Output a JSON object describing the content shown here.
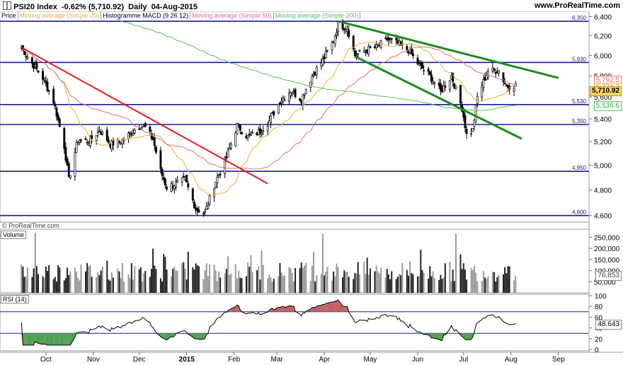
{
  "header": {
    "icon": "chart-candles-icon",
    "instrument": "PSI20 Index",
    "change": "-0.62% (5,710.92)",
    "period": "Daily",
    "date": "04-Aug-2015",
    "site": "www.ProRealTime.com",
    "watermark": "© ProRealTime.com"
  },
  "legend": [
    {
      "label": "Price",
      "color": "#000000"
    },
    {
      "label": "Moving average (Simple 20)",
      "color": "#e8b02c"
    },
    {
      "label": "Histogramme MACD (9 26 12)",
      "color": "#000000"
    },
    {
      "label": "Moving average (Simple 50)",
      "color": "#e07070"
    },
    {
      "label": "Moving average (Simple 200)",
      "color": "#52c452"
    }
  ],
  "colors": {
    "candle_up": "#ffffff",
    "candle_down": "#000000",
    "sma20": "#e8b02c",
    "sma50": "#e07070",
    "sma200": "#52c452",
    "support_lines": "#1a1a99",
    "downtrend_line": "#e02020",
    "channel_lines": "#1e8a1e",
    "rsi_line": "#000000",
    "rsi_overbought_fill": "#c06060",
    "rsi_oversold_fill": "#4fa04f"
  },
  "chart_data": [
    {
      "type": "candlestick",
      "title": "PSI20 Index Daily",
      "y_scale": "log",
      "ylim": [
        4550,
        6380
      ],
      "y_ticks": [
        "6,400",
        "6,200",
        "6,000",
        "5,800",
        "5,600",
        "5,400",
        "5,200",
        "5,000",
        "4,800",
        "4,600"
      ],
      "y_tick_values": [
        6400,
        6200,
        6000,
        5800,
        5600,
        5400,
        5200,
        5000,
        4800,
        4600
      ],
      "x_labels": [
        "Oct",
        "Nov",
        "Dec",
        "2015",
        "Feb",
        "Mar",
        "Apr",
        "May",
        "Jun",
        "Jul",
        "Aug",
        "Sep"
      ],
      "horizontal_levels": [
        {
          "value": 6350,
          "label": "6,350"
        },
        {
          "value": 5930,
          "label": "5,930"
        },
        {
          "value": 5530,
          "label": "5,530"
        },
        {
          "value": 5350,
          "label": "5,350"
        },
        {
          "value": 4950,
          "label": "4,950"
        },
        {
          "value": 4600,
          "label": "4,600"
        }
      ],
      "last_price": {
        "label": "5,710.92",
        "value": 5710.92
      },
      "sma20_last": {
        "label": "5,724.3",
        "value": 5724.3
      },
      "sma50_last": {
        "label": "5,792.5",
        "value": 5792.5
      },
      "sma200_last": {
        "label": "5,536.6",
        "value": 5536.6
      },
      "close_anchors": [
        [
          "2014-09-15",
          6080
        ],
        [
          "2014-09-22",
          5920
        ],
        [
          "2014-09-29",
          5780
        ],
        [
          "2014-10-06",
          5560
        ],
        [
          "2014-10-13",
          5160
        ],
        [
          "2014-10-16",
          4880
        ],
        [
          "2014-10-22",
          5220
        ],
        [
          "2014-10-29",
          5200
        ],
        [
          "2014-11-05",
          5300
        ],
        [
          "2014-11-12",
          5180
        ],
        [
          "2014-11-19",
          5200
        ],
        [
          "2014-11-26",
          5280
        ],
        [
          "2014-12-03",
          5360
        ],
        [
          "2014-12-10",
          5220
        ],
        [
          "2014-12-15",
          4950
        ],
        [
          "2014-12-19",
          4820
        ],
        [
          "2014-12-31",
          4880
        ],
        [
          "2015-01-07",
          4650
        ],
        [
          "2015-01-13",
          4620
        ],
        [
          "2015-01-20",
          4870
        ],
        [
          "2015-01-27",
          5060
        ],
        [
          "2015-02-03",
          5340
        ],
        [
          "2015-02-10",
          5240
        ],
        [
          "2015-02-17",
          5280
        ],
        [
          "2015-02-24",
          5380
        ],
        [
          "2015-03-03",
          5560
        ],
        [
          "2015-03-10",
          5660
        ],
        [
          "2015-03-17",
          5580
        ],
        [
          "2015-03-24",
          5800
        ],
        [
          "2015-03-31",
          5950
        ],
        [
          "2015-04-07",
          6150
        ],
        [
          "2015-04-10",
          6320
        ],
        [
          "2015-04-16",
          6280
        ],
        [
          "2015-04-21",
          6000
        ],
        [
          "2015-04-28",
          6050
        ],
        [
          "2015-05-05",
          6080
        ],
        [
          "2015-05-12",
          6160
        ],
        [
          "2015-05-19",
          6120
        ],
        [
          "2015-05-26",
          6050
        ],
        [
          "2015-06-02",
          5900
        ],
        [
          "2015-06-09",
          5800
        ],
        [
          "2015-06-16",
          5650
        ],
        [
          "2015-06-23",
          5800
        ],
        [
          "2015-06-30",
          5500
        ],
        [
          "2015-07-03",
          5260
        ],
        [
          "2015-07-07",
          5300
        ],
        [
          "2015-07-10",
          5600
        ],
        [
          "2015-07-17",
          5850
        ],
        [
          "2015-07-24",
          5850
        ],
        [
          "2015-07-29",
          5700
        ],
        [
          "2015-08-04",
          5711
        ]
      ],
      "drawn_lines": [
        {
          "name": "downtrend",
          "from": [
            "2014-09-15",
            6080
          ],
          "to": [
            "2015-02-23",
            4850
          ]
        },
        {
          "name": "channel-upper",
          "from": [
            "2015-04-10",
            6350
          ],
          "to": [
            "2015-09-01",
            5780
          ]
        },
        {
          "name": "channel-lower",
          "from": [
            "2015-04-21",
            5990
          ],
          "to": [
            "2015-08-08",
            5225
          ]
        }
      ]
    },
    {
      "type": "bar",
      "title": "Volume",
      "ylim": [
        0,
        280000
      ],
      "y_ticks": [
        "250,000",
        "200,000",
        "150,000",
        "100,000",
        "50,000"
      ],
      "y_tick_values": [
        250000,
        200000,
        150000,
        100000,
        50000
      ],
      "last_value": {
        "label": "76,853",
        "value": 76853
      },
      "typical_range": [
        50000,
        140000
      ],
      "spikes": [
        [
          "2014-09-24",
          270000
        ],
        [
          "2015-03-31",
          265000
        ],
        [
          "2015-06-26",
          265000
        ]
      ]
    },
    {
      "type": "line",
      "title": "RSI (14)",
      "ylim": [
        0,
        100
      ],
      "y_ticks": [
        "100",
        "80",
        "60",
        "40",
        "20",
        "0"
      ],
      "y_tick_values": [
        100,
        80,
        60,
        40,
        20,
        0
      ],
      "levels": [
        70,
        30
      ],
      "last_value": {
        "label": "48.643",
        "value": 48.643
      }
    }
  ]
}
